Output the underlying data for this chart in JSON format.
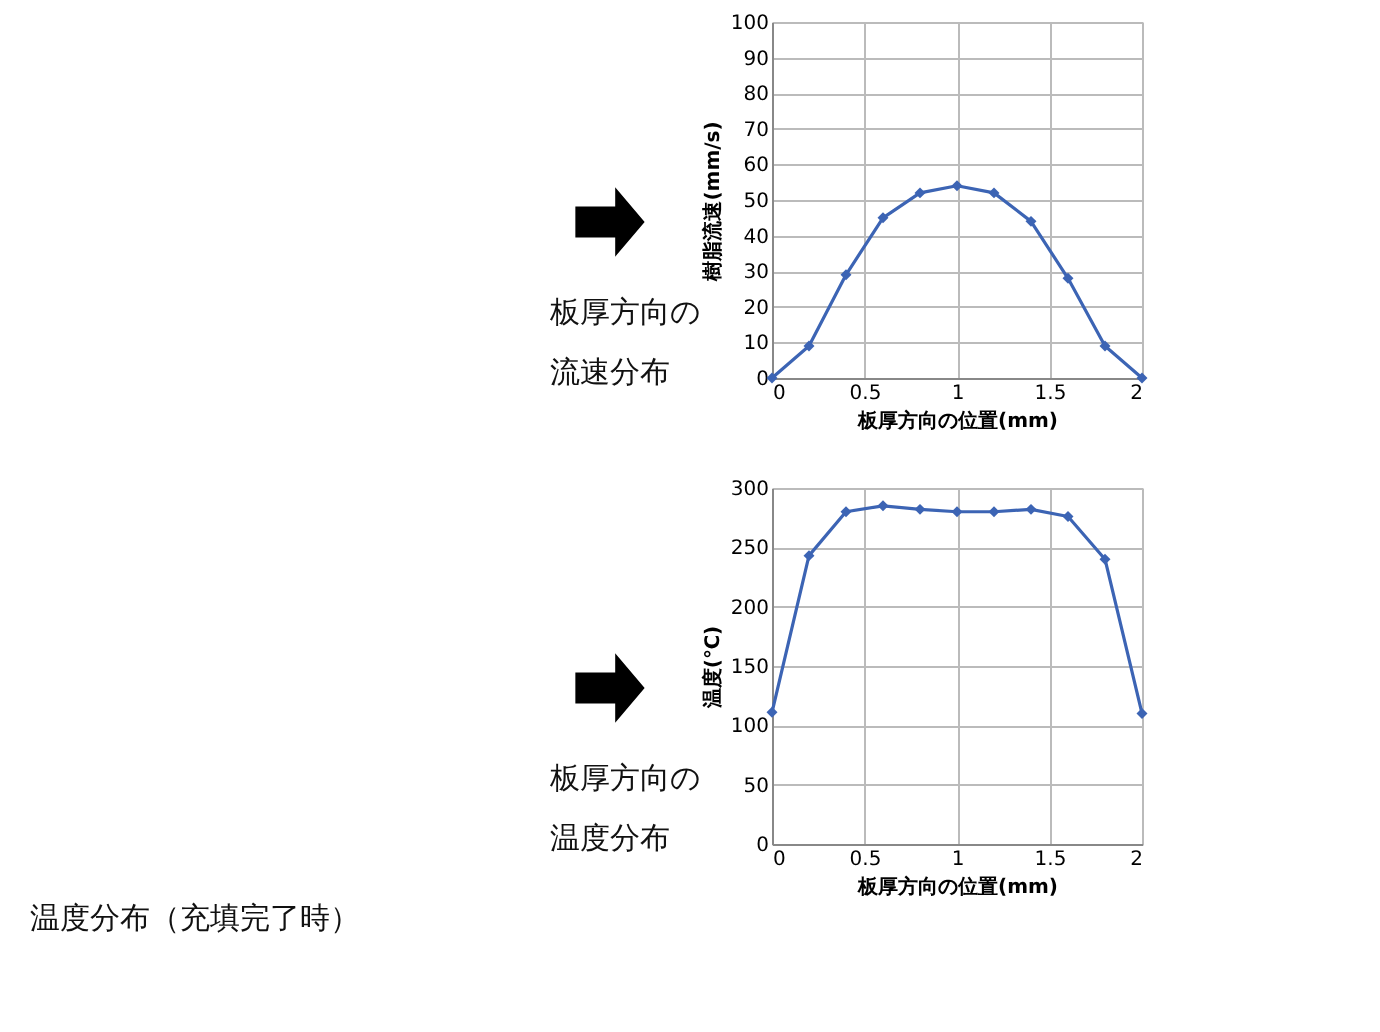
{
  "chart_data": [
    {
      "type": "line",
      "xlabel": "板厚方向の位置(mm)",
      "ylabel": "樹脂流速(mm/s)",
      "x": [
        0,
        0.2,
        0.4,
        0.6,
        0.8,
        1,
        1.2,
        1.4,
        1.6,
        1.8,
        2
      ],
      "series": [
        {
          "color": "#3c64b4",
          "values": [
            0,
            9,
            29,
            45,
            52,
            54,
            52,
            44,
            28,
            9,
            0
          ]
        }
      ],
      "xlim": [
        0,
        2
      ],
      "xticks": [
        0,
        0.5,
        1,
        1.5,
        2
      ],
      "ylim": [
        0,
        100
      ],
      "yticks": [
        0,
        10,
        20,
        30,
        40,
        50,
        60,
        70,
        80,
        90,
        100
      ],
      "grid": true,
      "marker": "diamond",
      "line_style": "solid",
      "legend": false,
      "annotations": [
        "板厚方向の",
        "流速分布"
      ]
    },
    {
      "type": "line",
      "xlabel": "板厚方向の位置(mm)",
      "ylabel": "温度(℃)",
      "x": [
        0,
        0.2,
        0.4,
        0.6,
        0.8,
        1,
        1.2,
        1.4,
        1.6,
        1.8,
        2
      ],
      "series": [
        {
          "color": "#3c64b4",
          "values": [
            111,
            243,
            280,
            285,
            282,
            280,
            280,
            282,
            276,
            240,
            110
          ]
        }
      ],
      "xlim": [
        0,
        2
      ],
      "xticks": [
        0,
        0.5,
        1,
        1.5,
        2
      ],
      "ylim": [
        0,
        300
      ],
      "yticks": [
        0,
        50,
        100,
        150,
        200,
        250,
        300
      ],
      "grid": true,
      "marker": "diamond",
      "line_style": "solid",
      "legend": false,
      "annotations": [
        "板厚方向の",
        "温度分布",
        "温度分布（充填完了時）"
      ]
    }
  ]
}
